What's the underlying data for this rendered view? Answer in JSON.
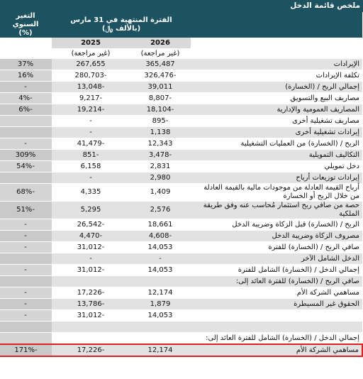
{
  "header": {
    "title": "ملخص قائمة الدخل",
    "period_line1": "الفترة المنتهية في 31 مارس",
    "period_line2": "(بالألف ﷼)",
    "change_line1": "التغير السنوي",
    "change_line2": "(%)",
    "years": [
      "2026",
      "2025"
    ],
    "unaudited": [
      "(غير مراجعة)",
      "(غير مراجعة)"
    ]
  },
  "table": {
    "rows": [
      [
        "الإيرادات",
        "365,487",
        "267,655",
        "37%"
      ],
      [
        "تكلفة الإيرادات",
        "-326,476",
        "-280,703",
        "16%"
      ],
      [
        "إجمالي الربح / (الخسارة)",
        "39,011",
        "-13,048",
        "-"
      ],
      [
        "مصاريف البيع والتسويق",
        "-8,807",
        "-9,217",
        "-4%"
      ],
      [
        "المصاريف العمومية والإدارية",
        "-18,104",
        "-19,214",
        "-6%"
      ],
      [
        "مصاريف تشغيلية أخرى",
        "-895",
        "-",
        null
      ],
      [
        "إيرادات تشغيلية أخرى",
        "1,138",
        "-",
        null
      ],
      [
        "الربح / (الخسارة) من العمليات التشغيلية",
        "12,343",
        "-41,479",
        "-"
      ],
      [
        "التكاليف التمويلية",
        "-3,478",
        "-851",
        "309%"
      ],
      [
        "دخل تمويلي",
        "2,831",
        "6,158",
        "-54%"
      ],
      [
        "إيرادات توزيعات أرباح",
        "2,980",
        "-",
        null
      ],
      [
        "أرباح القيمة العادلة من موجودات مالية بالقيمة العادلة من خلال الربح أو الخسارة",
        "1,409",
        "4,335",
        "-68%"
      ],
      [
        "حصة من صافي ربح استثمار مُحاسب عنه وفق طريقة الملكية",
        "2,576",
        "5,295",
        "-51%"
      ],
      [
        "الربح / (الخسارة) قبل الزكاة وضريبة الدخل",
        "18,661",
        "-26,542",
        "-"
      ],
      [
        "مصروف الزكاة وضريبة الدخل",
        "-4,608",
        "-4,470",
        "-"
      ],
      [
        "صافي الربح / (الخسارة) للفترة",
        "14,053",
        "-31,012",
        "-"
      ],
      [
        "الدخل الشامل الآخر",
        "-",
        "-",
        null
      ],
      [
        "إجمالي الدخل / (الخسارة) الشامل للفترة",
        "14,053",
        "-31,012",
        "-"
      ],
      [
        "صافي الربح / (الخسارة) للفترة العائد إلى:",
        null,
        null,
        null
      ],
      [
        "مساهمي الشركة الأم",
        "12,174",
        "-17,226",
        "-"
      ],
      [
        "الحقوق غير المسيطرة",
        "1,879",
        "-13,786",
        "-"
      ],
      [
        null,
        "14,053",
        "-31,012",
        "-"
      ],
      [
        null,
        null,
        null,
        null
      ],
      [
        "إجمالي الدخل / (الخسارة) الشامل للفترة العائد إلى:",
        null,
        null,
        null
      ],
      [
        "مساهمي الشركة الأم",
        "12,174",
        "-17,226",
        "-171%"
      ]
    ]
  }
}
